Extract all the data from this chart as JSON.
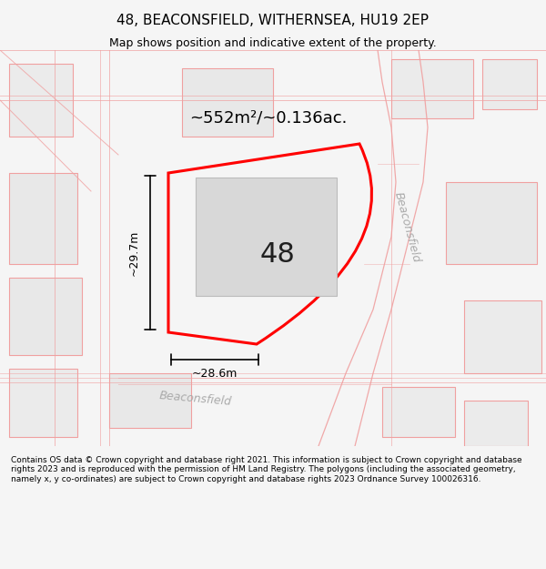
{
  "title": "48, BEACONSFIELD, WITHERNSEA, HU19 2EP",
  "subtitle": "Map shows position and indicative extent of the property.",
  "footer": "Contains OS data © Crown copyright and database right 2021. This information is subject to Crown copyright and database rights 2023 and is reproduced with the permission of HM Land Registry. The polygons (including the associated geometry, namely x, y co-ordinates) are subject to Crown copyright and database rights 2023 Ordnance Survey 100026316.",
  "area_label": "~552m²/~0.136ac.",
  "number_label": "48",
  "dim_height": "~29.7m",
  "dim_width": "~28.6m",
  "street_label_diag": "Beaconsfield",
  "street_label_horiz": "Beaconsfield",
  "bg_color": "#f5f5f5",
  "map_bg": "#ffffff",
  "plot_color": "#ff0000",
  "building_color": "#d8d8d8",
  "road_color": "#ffffff",
  "road_border": "#f0a0a0",
  "figsize": [
    6.0,
    6.25
  ],
  "dpi": 100
}
